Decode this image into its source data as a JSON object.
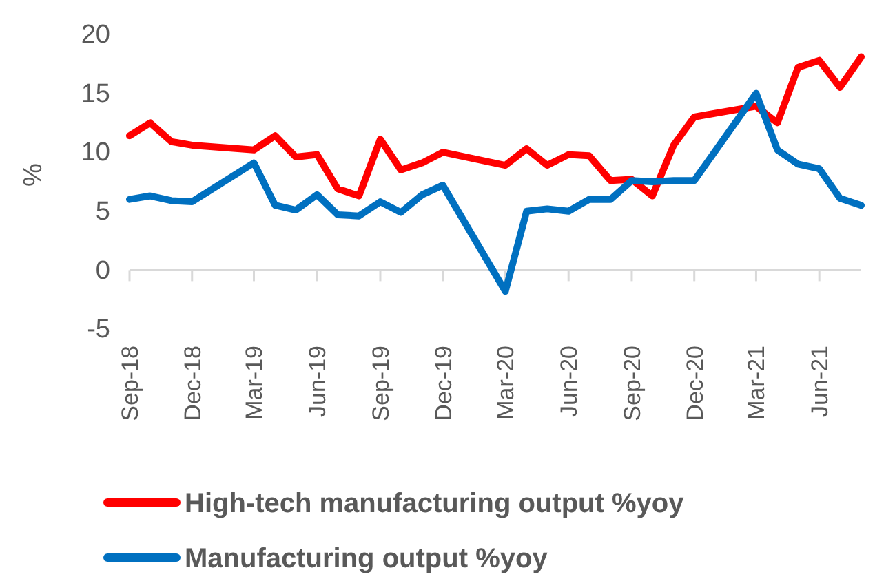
{
  "chart_data": {
    "type": "line",
    "ylabel": "%",
    "xlim": [
      "2018-09",
      "2021-08"
    ],
    "xticks": [
      {
        "value": "2018-09",
        "label": "Sep-18"
      },
      {
        "value": "2018-12",
        "label": "Dec-18"
      },
      {
        "value": "2019-03",
        "label": "Mar-19"
      },
      {
        "value": "2019-06",
        "label": "Jun-19"
      },
      {
        "value": "2019-09",
        "label": "Sep-19"
      },
      {
        "value": "2019-12",
        "label": "Dec-19"
      },
      {
        "value": "2020-03",
        "label": "Mar-20"
      },
      {
        "value": "2020-06",
        "label": "Jun-20"
      },
      {
        "value": "2020-09",
        "label": "Sep-20"
      },
      {
        "value": "2020-12",
        "label": "Dec-20"
      },
      {
        "value": "2021-03",
        "label": "Mar-21"
      },
      {
        "value": "2021-06",
        "label": "Jun-21"
      }
    ],
    "ylim": [
      -5,
      20
    ],
    "yticks": [
      -5,
      0,
      5,
      10,
      15,
      20
    ],
    "legend": "bottom",
    "marker": "none",
    "line_style": "solid",
    "series": [
      {
        "name": "High-tech manufacturing output %yoy",
        "color": "#ff0000",
        "x": [
          "2018-09",
          "2018-10",
          "2018-11",
          "2018-12",
          "2019-03",
          "2019-04",
          "2019-05",
          "2019-06",
          "2019-07",
          "2019-08",
          "2019-09",
          "2019-10",
          "2019-11",
          "2019-12",
          "2020-03",
          "2020-04",
          "2020-05",
          "2020-06",
          "2020-07",
          "2020-08",
          "2020-09",
          "2020-10",
          "2020-11",
          "2020-12",
          "2021-03",
          "2021-04",
          "2021-05",
          "2021-06",
          "2021-07",
          "2021-08"
        ],
        "values": [
          11.4,
          12.5,
          10.9,
          10.6,
          10.2,
          11.4,
          9.6,
          9.8,
          6.9,
          6.3,
          11.1,
          8.5,
          9.1,
          10.0,
          8.9,
          10.3,
          8.9,
          9.8,
          9.7,
          7.6,
          7.7,
          6.3,
          10.6,
          13.0,
          13.9,
          12.5,
          17.2,
          17.8,
          15.5,
          18.1
        ]
      },
      {
        "name": "Manufacturing output %yoy",
        "color": "#0070c0",
        "x": [
          "2018-09",
          "2018-10",
          "2018-11",
          "2018-12",
          "2019-03",
          "2019-04",
          "2019-05",
          "2019-06",
          "2019-07",
          "2019-08",
          "2019-09",
          "2019-10",
          "2019-11",
          "2019-12",
          "2020-03",
          "2020-04",
          "2020-05",
          "2020-06",
          "2020-07",
          "2020-08",
          "2020-09",
          "2020-10",
          "2020-11",
          "2020-12",
          "2021-03",
          "2021-04",
          "2021-05",
          "2021-06",
          "2021-07",
          "2021-08"
        ],
        "values": [
          6.0,
          6.3,
          5.9,
          5.8,
          9.1,
          5.5,
          5.1,
          6.4,
          4.7,
          4.6,
          5.8,
          4.9,
          6.4,
          7.2,
          -1.8,
          5.0,
          5.2,
          5.0,
          6.0,
          6.0,
          7.6,
          7.5,
          7.6,
          7.6,
          15.0,
          10.2,
          9.0,
          8.6,
          6.1,
          5.5
        ]
      }
    ]
  }
}
